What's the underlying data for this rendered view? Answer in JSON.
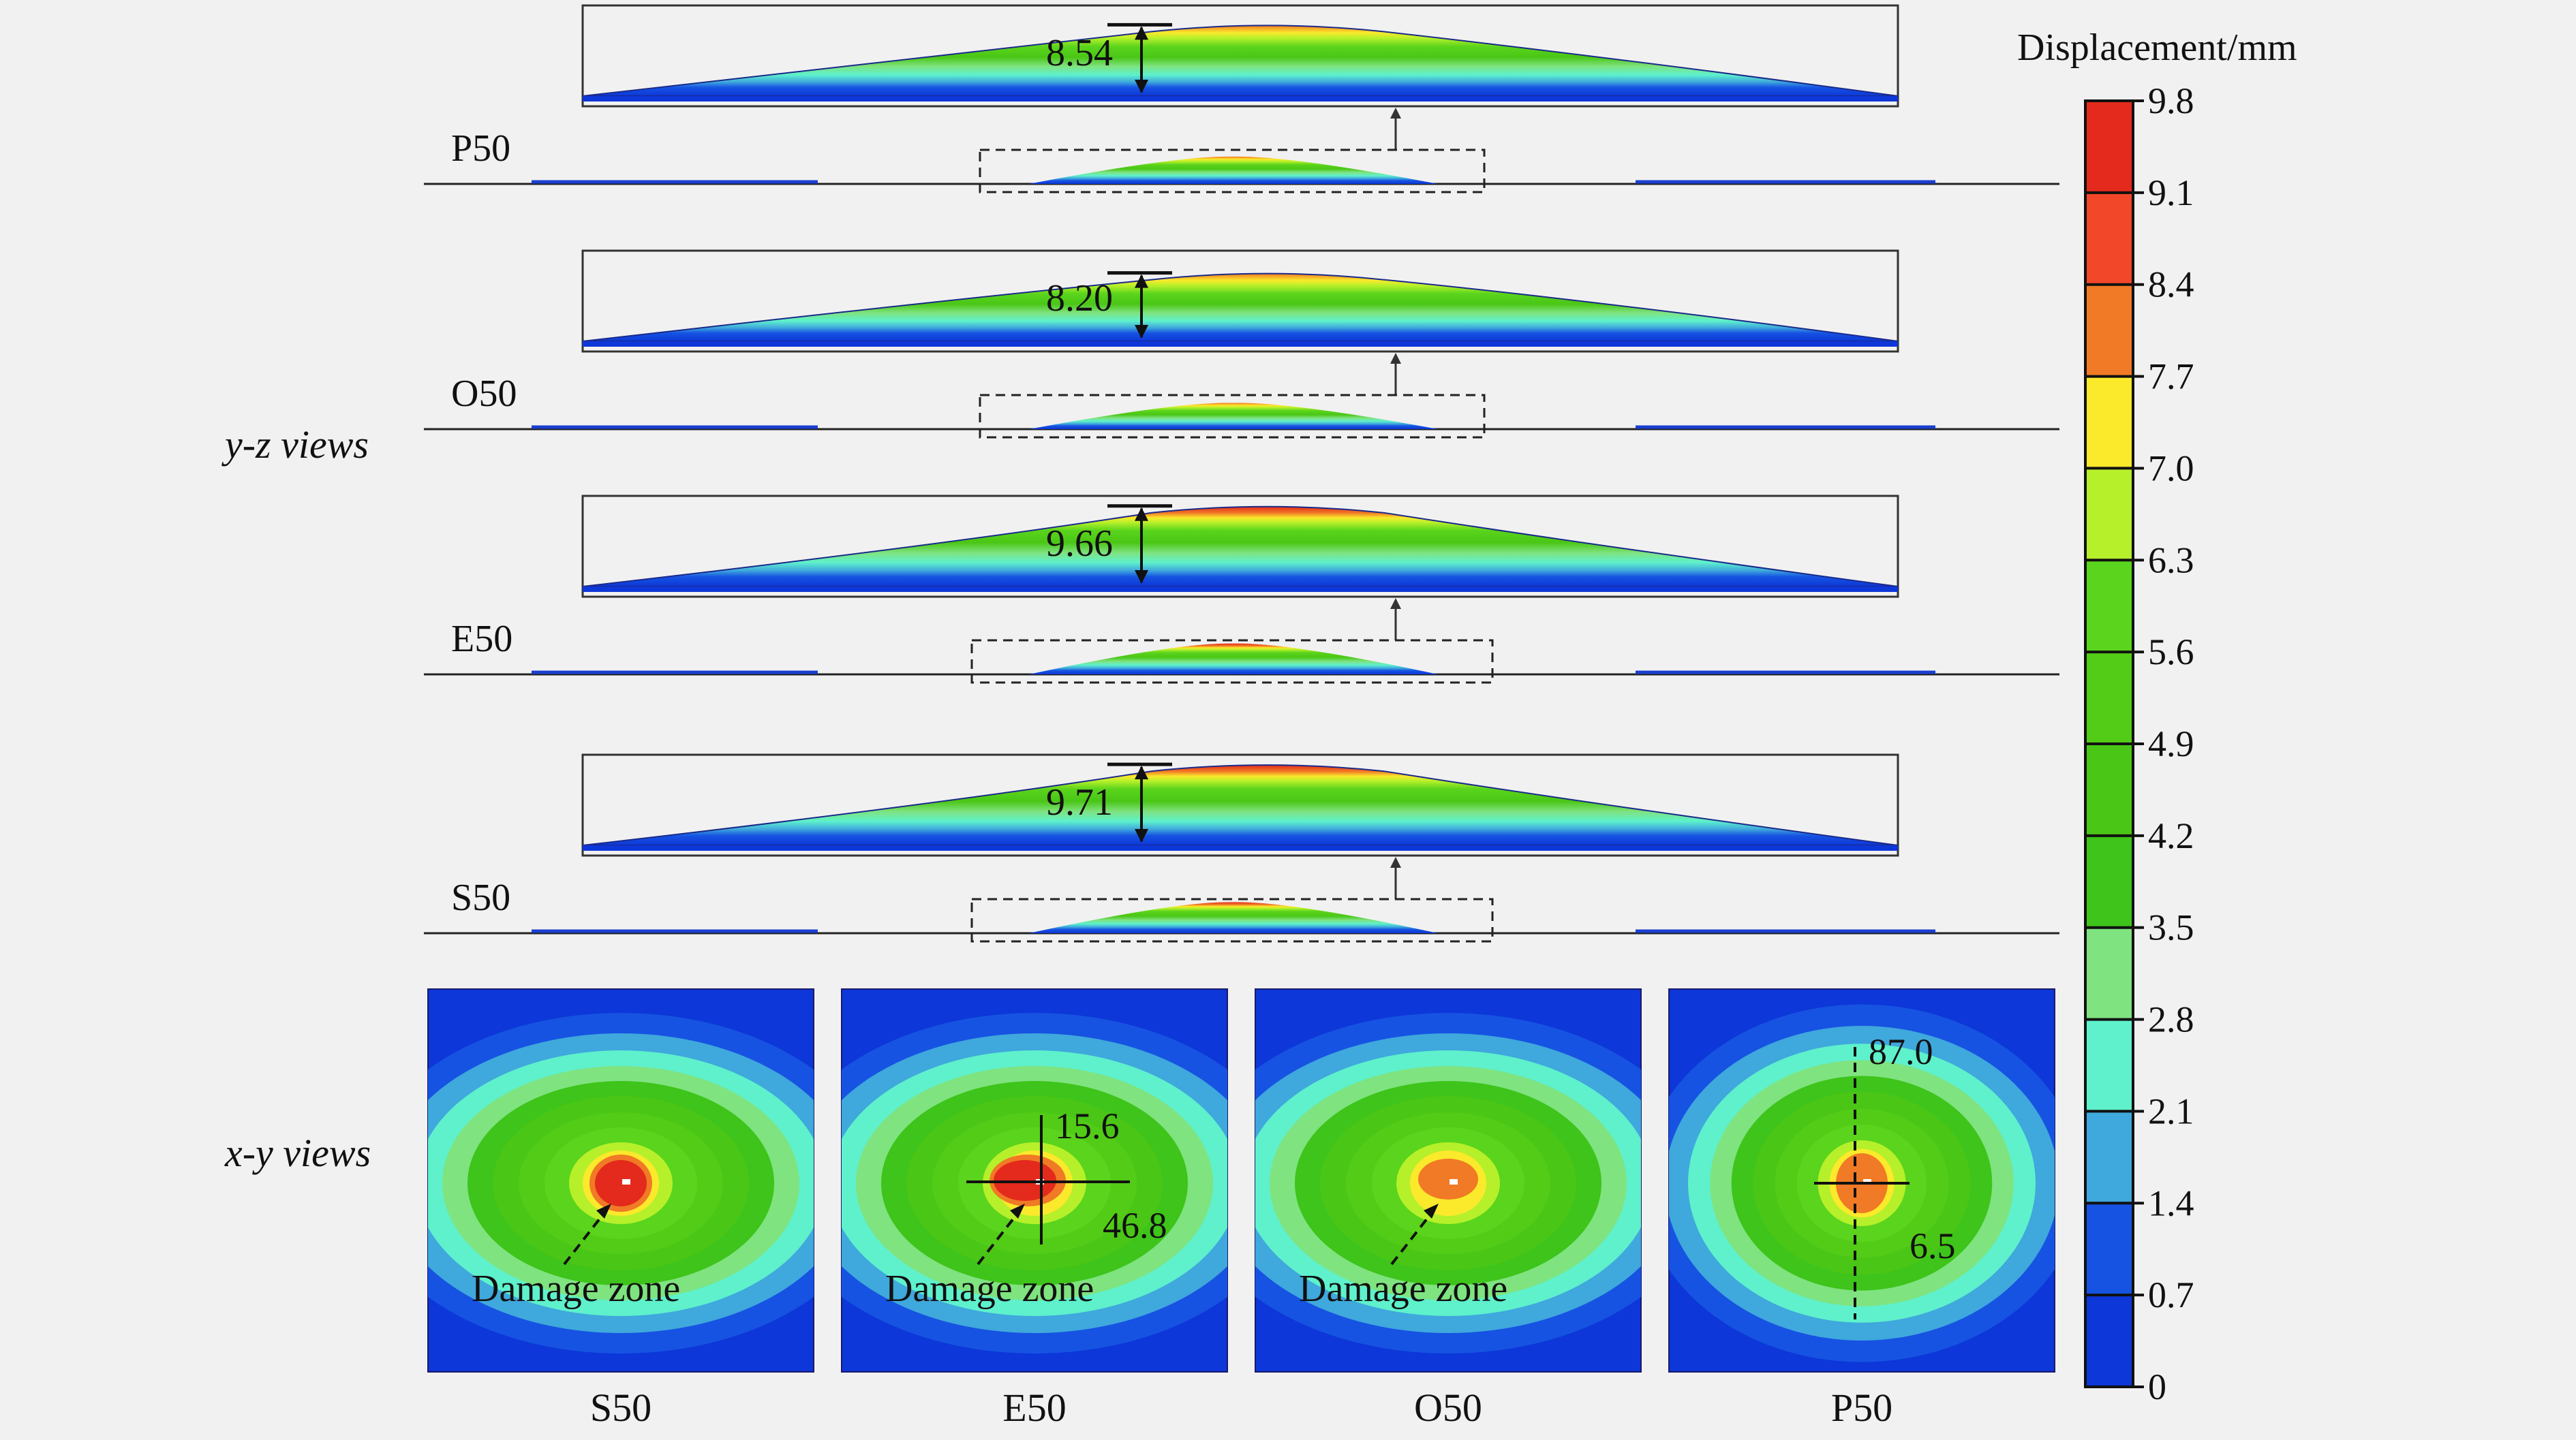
{
  "figure": {
    "yz_section_label": "y-z views",
    "xy_section_label": "x-y views",
    "colorbar": {
      "title": "Displacement/mm",
      "ticks": [
        "9.8",
        "9.1",
        "8.4",
        "7.7",
        "7.0",
        "6.3",
        "5.6",
        "4.9",
        "4.2",
        "3.5",
        "2.8",
        "2.1",
        "1.4",
        "0.7",
        "0"
      ],
      "colors": [
        "#e42a1c",
        "#f3472a",
        "#f07a25",
        "#fbe92c",
        "#b6f02a",
        "#5ad41c",
        "#52cc16",
        "#4ac616",
        "#3ec41a",
        "#7fe380",
        "#5ef1cc",
        "#3fa8dc",
        "#1653e2",
        "#0d37d8"
      ]
    },
    "yz_views": [
      {
        "label": "P50",
        "peak_value": "8.54",
        "peak_mm": 8.54
      },
      {
        "label": "O50",
        "peak_value": "8.20",
        "peak_mm": 8.2
      },
      {
        "label": "E50",
        "peak_value": "9.66",
        "peak_mm": 9.66
      },
      {
        "label": "S50",
        "peak_value": "9.71",
        "peak_mm": 9.71
      }
    ],
    "xy_views": [
      {
        "label": "S50",
        "damage_label": "Damage zone",
        "dims": []
      },
      {
        "label": "E50",
        "damage_label": "Damage zone",
        "dims": [
          "15.6",
          "46.8"
        ]
      },
      {
        "label": "O50",
        "damage_label": "Damage zone",
        "dims": []
      },
      {
        "label": "P50",
        "damage_label": "",
        "dims": [
          "87.0",
          "6.5"
        ]
      }
    ]
  }
}
